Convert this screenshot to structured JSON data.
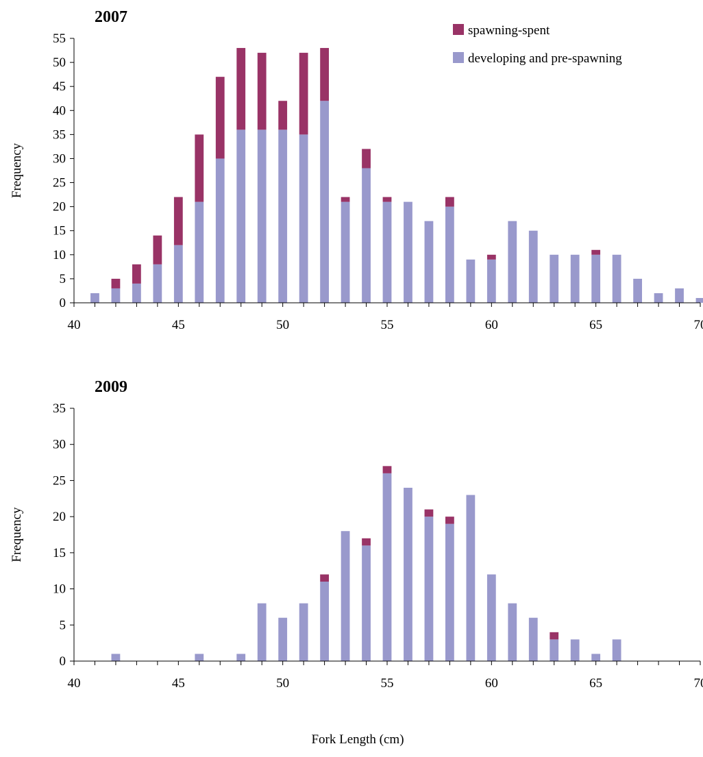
{
  "colors": {
    "developing": "#9999CC",
    "spawning": "#993366",
    "axis": "#000000"
  },
  "legend": {
    "spawning_label": "spawning-spent",
    "developing_label": "developing and pre-spawning"
  },
  "xlabel": "Fork Length (cm)",
  "chart_data": [
    {
      "type": "bar",
      "stacked": true,
      "title": "2007",
      "ylabel": "Frequency",
      "xlim": [
        40,
        70
      ],
      "ylim": [
        0,
        55
      ],
      "yticks": [
        0,
        5,
        10,
        15,
        20,
        25,
        30,
        35,
        40,
        45,
        50,
        55
      ],
      "xticks": [
        40,
        45,
        50,
        55,
        60,
        65,
        70
      ],
      "categories": [
        41,
        42,
        43,
        44,
        45,
        46,
        47,
        48,
        49,
        50,
        51,
        52,
        53,
        54,
        55,
        56,
        57,
        58,
        59,
        60,
        61,
        62,
        63,
        64,
        65,
        66,
        67,
        68,
        69,
        70
      ],
      "series": [
        {
          "name": "developing and pre-spawning",
          "color": "#9999CC",
          "values": [
            2,
            3,
            4,
            8,
            12,
            21,
            30,
            36,
            36,
            36,
            35,
            42,
            21,
            28,
            21,
            21,
            17,
            20,
            9,
            9,
            17,
            15,
            10,
            10,
            10,
            10,
            5,
            2,
            3,
            1
          ]
        },
        {
          "name": "spawning-spent",
          "color": "#993366",
          "values": [
            0,
            2,
            4,
            6,
            10,
            14,
            17,
            17,
            16,
            6,
            17,
            11,
            1,
            4,
            1,
            0,
            0,
            2,
            0,
            1,
            0,
            0,
            0,
            0,
            1,
            0,
            0,
            0,
            0,
            0
          ]
        }
      ],
      "legend_position": "top-right"
    },
    {
      "type": "bar",
      "stacked": true,
      "title": "2009",
      "ylabel": "Frequency",
      "xlabel": "Fork Length (cm)",
      "xlim": [
        40,
        70
      ],
      "ylim": [
        0,
        35
      ],
      "yticks": [
        0,
        5,
        10,
        15,
        20,
        25,
        30,
        35
      ],
      "xticks": [
        40,
        45,
        50,
        55,
        60,
        65,
        70
      ],
      "categories": [
        41,
        42,
        43,
        44,
        45,
        46,
        47,
        48,
        49,
        50,
        51,
        52,
        53,
        54,
        55,
        56,
        57,
        58,
        59,
        60,
        61,
        62,
        63,
        64,
        65,
        66,
        67,
        68,
        69,
        70
      ],
      "series": [
        {
          "name": "developing and pre-spawning",
          "color": "#9999CC",
          "values": [
            0,
            1,
            0,
            0,
            0,
            1,
            0,
            1,
            8,
            6,
            8,
            11,
            18,
            16,
            26,
            24,
            20,
            19,
            23,
            12,
            8,
            6,
            3,
            3,
            1,
            3,
            0,
            0,
            0,
            0
          ]
        },
        {
          "name": "spawning-spent",
          "color": "#993366",
          "values": [
            0,
            0,
            0,
            0,
            0,
            0,
            0,
            0,
            0,
            0,
            0,
            1,
            0,
            1,
            1,
            0,
            1,
            1,
            0,
            0,
            0,
            0,
            1,
            0,
            0,
            0,
            0,
            0,
            0,
            0
          ]
        }
      ]
    }
  ]
}
